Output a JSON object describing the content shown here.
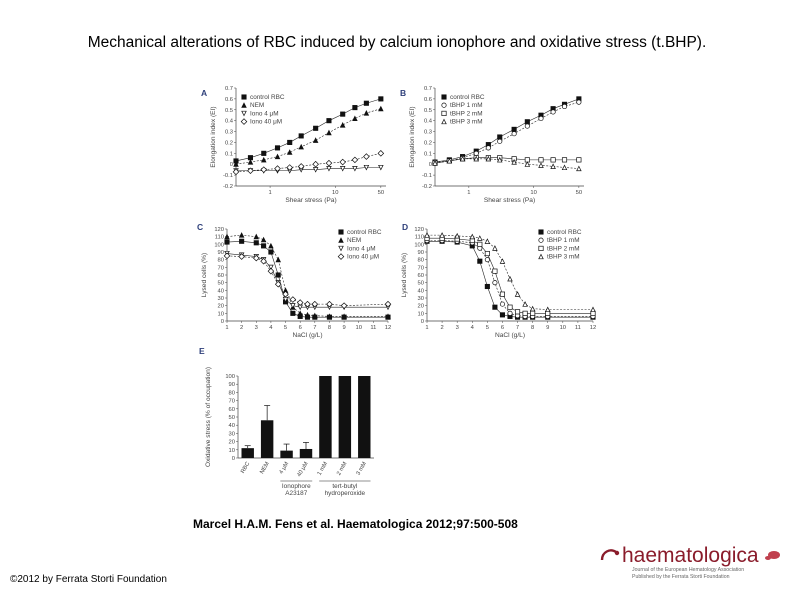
{
  "title": "Mechanical alterations of RBC induced by calcium ionophore and oxidative stress (t.BHP).",
  "citation": "Marcel H.A.M. Fens et al. Haematologica 2012;97:500-508",
  "copyright": "©2012 by Ferrata Storti Foundation",
  "logo": {
    "name": "haematologica",
    "tagline_1": "Journal of the European Hematology Association",
    "tagline_2": "Published by the Ferrata Storti Foundation"
  },
  "colors": {
    "title_text": "#000000",
    "panel_label": "#2e3f7a",
    "axis": "#444444",
    "bar": "#111111"
  },
  "chart_data": [
    {
      "panel": "A",
      "type": "line",
      "x_scale": "log",
      "xlabel": "Shear stress (Pa)",
      "ylabel": "Elongation index (EI)",
      "xticks": [
        1,
        10,
        50
      ],
      "yticks": [
        -0.2,
        -0.1,
        0,
        0.1,
        0.2,
        0.3,
        0.4,
        0.5,
        0.6,
        0.7
      ],
      "xlim": [
        0.3,
        60
      ],
      "ylim": [
        -0.2,
        0.7
      ],
      "legend_position": "top-left",
      "x": [
        0.3,
        0.5,
        0.8,
        1.3,
        2,
        3,
        5,
        8,
        13,
        20,
        30,
        50
      ],
      "series": [
        {
          "name": "control RBC",
          "marker": "square-filled",
          "values": [
            0.03,
            0.06,
            0.1,
            0.15,
            0.2,
            0.26,
            0.33,
            0.4,
            0.46,
            0.52,
            0.56,
            0.6
          ]
        },
        {
          "name": "NEM",
          "marker": "triangle-filled",
          "values": [
            0.0,
            0.02,
            0.04,
            0.07,
            0.11,
            0.16,
            0.22,
            0.29,
            0.36,
            0.42,
            0.47,
            0.51
          ]
        },
        {
          "name": "Iono 4 μM",
          "marker": "triangle-down-open",
          "values": [
            -0.06,
            -0.06,
            -0.06,
            -0.06,
            -0.06,
            -0.05,
            -0.05,
            -0.04,
            -0.04,
            -0.04,
            -0.03,
            -0.03
          ]
        },
        {
          "name": "Iono 40 μM",
          "marker": "diamond-open",
          "values": [
            -0.07,
            -0.06,
            -0.05,
            -0.04,
            -0.03,
            -0.02,
            0.0,
            0.01,
            0.02,
            0.04,
            0.07,
            0.1
          ]
        }
      ]
    },
    {
      "panel": "B",
      "type": "line",
      "x_scale": "log",
      "xlabel": "Shear stress (Pa)",
      "ylabel": "Elongation index (EI)",
      "xticks": [
        1,
        10,
        50
      ],
      "yticks": [
        -0.2,
        -0.1,
        0,
        0.1,
        0.2,
        0.3,
        0.4,
        0.5,
        0.6,
        0.7
      ],
      "xlim": [
        0.3,
        60
      ],
      "ylim": [
        -0.2,
        0.7
      ],
      "legend_position": "top-left",
      "x": [
        0.3,
        0.5,
        0.8,
        1.3,
        2,
        3,
        5,
        8,
        13,
        20,
        30,
        50
      ],
      "series": [
        {
          "name": "control RBC",
          "marker": "square-filled",
          "values": [
            0.02,
            0.04,
            0.07,
            0.12,
            0.18,
            0.25,
            0.32,
            0.39,
            0.45,
            0.51,
            0.55,
            0.6
          ]
        },
        {
          "name": "tBHP 1 mM",
          "marker": "circle-open",
          "values": [
            0.02,
            0.03,
            0.06,
            0.1,
            0.15,
            0.21,
            0.28,
            0.35,
            0.42,
            0.48,
            0.53,
            0.57
          ]
        },
        {
          "name": "tBHP 2 mM",
          "marker": "square-open",
          "values": [
            0.01,
            0.03,
            0.05,
            0.06,
            0.06,
            0.06,
            0.05,
            0.04,
            0.04,
            0.04,
            0.04,
            0.04
          ]
        },
        {
          "name": "tBHP 3 mM",
          "marker": "triangle-open",
          "values": [
            0.01,
            0.03,
            0.05,
            0.05,
            0.05,
            0.04,
            0.02,
            0.0,
            -0.01,
            -0.02,
            -0.03,
            -0.04
          ]
        }
      ]
    },
    {
      "panel": "C",
      "type": "scatter",
      "xlabel": "NaCl (g/L)",
      "ylabel": "Lysed cells (%)",
      "xticks": [
        1,
        2,
        3,
        4,
        5,
        6,
        7,
        8,
        9,
        10,
        11,
        12
      ],
      "yticks": [
        0,
        10,
        20,
        30,
        40,
        50,
        60,
        70,
        80,
        90,
        100,
        110,
        120
      ],
      "xlim": [
        1,
        12
      ],
      "ylim": [
        0,
        120
      ],
      "legend_position": "top-right",
      "x": [
        1,
        2,
        3,
        3.5,
        4,
        4.5,
        5,
        5.5,
        6,
        6.5,
        7,
        8,
        9,
        12
      ],
      "series": [
        {
          "name": "control RBC",
          "marker": "square-filled",
          "values": [
            103,
            104,
            102,
            98,
            90,
            60,
            25,
            10,
            6,
            5,
            5,
            5,
            5,
            5
          ]
        },
        {
          "name": "NEM",
          "marker": "triangle-filled",
          "values": [
            110,
            112,
            110,
            106,
            98,
            80,
            40,
            18,
            10,
            8,
            7,
            6,
            6,
            6
          ]
        },
        {
          "name": "Iono 4 μM",
          "marker": "triangle-down-open",
          "values": [
            88,
            86,
            84,
            80,
            70,
            50,
            28,
            20,
            18,
            18,
            18,
            18,
            18,
            18
          ]
        },
        {
          "name": "Iono 40 μM",
          "marker": "diamond-open",
          "values": [
            85,
            84,
            82,
            78,
            65,
            48,
            35,
            28,
            24,
            22,
            22,
            22,
            20,
            22
          ]
        }
      ]
    },
    {
      "panel": "D",
      "type": "scatter",
      "xlabel": "NaCl (g/L)",
      "ylabel": "Lysed cells (%)",
      "xticks": [
        1,
        2,
        3,
        4,
        5,
        6,
        7,
        8,
        9,
        10,
        11,
        12
      ],
      "yticks": [
        0,
        10,
        20,
        30,
        40,
        50,
        60,
        70,
        80,
        90,
        100,
        110,
        120
      ],
      "xlim": [
        1,
        12
      ],
      "ylim": [
        0,
        120
      ],
      "legend_position": "top-right",
      "x": [
        1,
        2,
        3,
        4,
        4.5,
        5,
        5.5,
        6,
        6.5,
        7,
        7.5,
        8,
        9,
        12
      ],
      "series": [
        {
          "name": "control RBC",
          "marker": "square-filled",
          "values": [
            104,
            104,
            103,
            98,
            78,
            45,
            18,
            8,
            6,
            5,
            5,
            5,
            5,
            5
          ]
        },
        {
          "name": "tBHP 1 mM",
          "marker": "circle-open",
          "values": [
            105,
            105,
            104,
            102,
            95,
            80,
            50,
            22,
            10,
            7,
            6,
            6,
            6,
            6
          ]
        },
        {
          "name": "tBHP 2 mM",
          "marker": "square-open",
          "values": [
            108,
            108,
            107,
            105,
            100,
            88,
            65,
            35,
            18,
            12,
            10,
            10,
            10,
            10
          ]
        },
        {
          "name": "tBHP 3 mM",
          "marker": "triangle-open",
          "values": [
            112,
            112,
            111,
            110,
            108,
            104,
            95,
            78,
            55,
            35,
            22,
            16,
            15,
            15
          ]
        }
      ]
    },
    {
      "panel": "E",
      "type": "bar",
      "ylabel": "Oxidative stress (% of occupation)",
      "yticks": [
        0,
        10,
        20,
        30,
        40,
        50,
        60,
        70,
        80,
        90,
        100
      ],
      "ylim": [
        0,
        100
      ],
      "categories": [
        "RBC",
        "NEM",
        "4 μM",
        "40 μM",
        "1 mM",
        "2 mM",
        "3 mM"
      ],
      "values": [
        12,
        46,
        9,
        11,
        100,
        100,
        100
      ],
      "errors": [
        3,
        18,
        8,
        8,
        0,
        0,
        0
      ],
      "groups": [
        {
          "label_line_1": "Ionophore",
          "label_line_2": "A23187",
          "categories": [
            "4 μM",
            "40 μM"
          ]
        },
        {
          "label_line_1": "tert-butyl",
          "label_line_2": "hydroperoxide",
          "categories": [
            "1 mM",
            "2 mM",
            "3 mM"
          ]
        }
      ]
    }
  ]
}
